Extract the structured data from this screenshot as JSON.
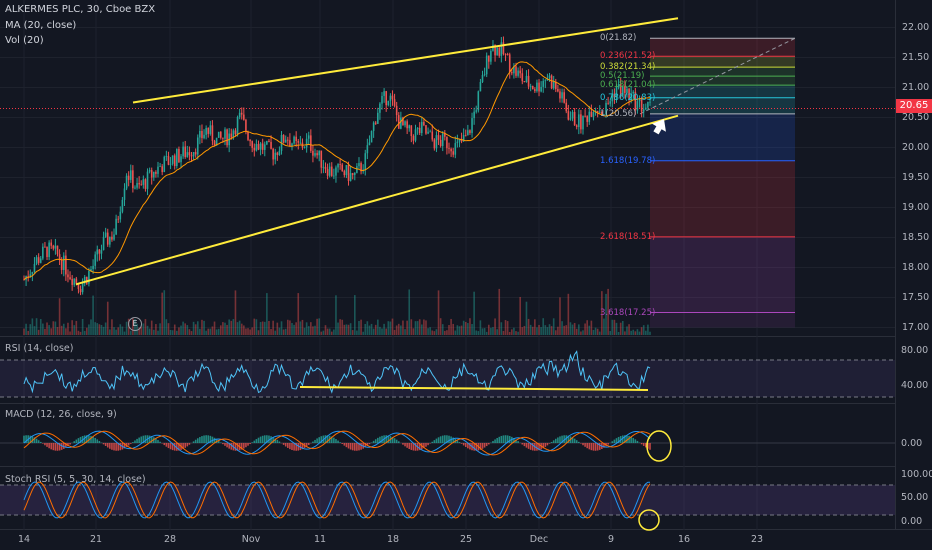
{
  "header": {
    "symbol_line": "ALKERMES PLC, 30, Cboe BZX",
    "ma_label": "MA (20, close)",
    "vol_label": "Vol (20)"
  },
  "price_tag": "20.65",
  "earnings_marker": "E",
  "panels": {
    "rsi": {
      "label": "RSI (14, close)",
      "ticks": [
        "80.00",
        "40.00"
      ]
    },
    "macd": {
      "label": "MACD (12, 26, close, 9)",
      "ticks": [
        "0.00"
      ]
    },
    "stoch": {
      "label": "Stoch RSI (5, 5, 30, 14, close)",
      "ticks": [
        "100.00",
        "50.00",
        "0.00"
      ]
    }
  },
  "price_axis": [
    "22.00",
    "21.50",
    "21.00",
    "20.50",
    "20.00",
    "19.50",
    "19.00",
    "18.50",
    "18.00",
    "17.50",
    "17.00"
  ],
  "x_axis": [
    "14",
    "21",
    "28",
    "Nov",
    "11",
    "18",
    "25",
    "Dec",
    "9",
    "16",
    "23"
  ],
  "fib_levels": [
    {
      "label": "0(21.82)",
      "price": 21.82,
      "color": "#b2b5be"
    },
    {
      "label": "0.236(21.52)",
      "price": 21.52,
      "color": "#f23645"
    },
    {
      "label": "0.382(21.34)",
      "price": 21.34,
      "color": "#cddc39"
    },
    {
      "label": "0.5(21.19)",
      "price": 21.19,
      "color": "#4caf50"
    },
    {
      "label": "0.618(21.04)",
      "price": 21.04,
      "color": "#4caf50"
    },
    {
      "label": "0.786(20.83)",
      "price": 20.83,
      "color": "#26c6da"
    },
    {
      "label": "1(20.56)",
      "price": 20.56,
      "color": "#b2b5be"
    },
    {
      "label": "1.618(19.78)",
      "price": 19.78,
      "color": "#2962ff"
    },
    {
      "label": "2.618(18.51)",
      "price": 18.51,
      "color": "#f23645"
    },
    {
      "label": "3.618(17.25)",
      "price": 17.25,
      "color": "#ab47bc"
    }
  ],
  "chart_data": {
    "type": "line",
    "title": "ALKERMES PLC, 30, Cboe BZX",
    "x_ticks": [
      "14",
      "21",
      "28",
      "Nov",
      "11",
      "18",
      "25",
      "Dec",
      "9",
      "16",
      "23"
    ],
    "y_ticks": [
      22.0,
      21.5,
      21.0,
      20.5,
      20.0,
      19.5,
      19.0,
      18.5,
      18.0,
      17.5,
      17.0
    ],
    "ylim": [
      16.9,
      22.1
    ],
    "last_price": 20.65,
    "series": [
      {
        "name": "Price",
        "x": [
          "14",
          "15",
          "16",
          "17",
          "18",
          "19",
          "20",
          "21",
          "22",
          "23",
          "24",
          "25",
          "26",
          "27",
          "28",
          "29",
          "30",
          "31",
          "Nov",
          "2",
          "3",
          "4",
          "5",
          "6",
          "7",
          "8",
          "9",
          "10",
          "11",
          "12",
          "13",
          "14",
          "15",
          "16",
          "17",
          "18",
          "19",
          "20",
          "21",
          "22",
          "23",
          "24",
          "25",
          "26",
          "27",
          "28",
          "29",
          "30",
          "Dec",
          "2",
          "3",
          "4",
          "5",
          "6",
          "7",
          "8"
        ],
        "values": [
          17.8,
          18.1,
          18.3,
          18.2,
          17.9,
          17.7,
          18.0,
          18.4,
          18.6,
          19.6,
          19.3,
          19.5,
          19.7,
          19.8,
          19.9,
          20.0,
          20.3,
          20.1,
          20.2,
          20.5,
          20.1,
          20.0,
          19.9,
          20.2,
          20.0,
          20.1,
          19.8,
          19.6,
          19.6,
          19.5,
          19.8,
          20.6,
          20.9,
          20.4,
          20.2,
          20.3,
          20.1,
          20.1,
          20.0,
          20.2,
          20.9,
          21.7,
          21.6,
          21.3,
          21.1,
          21.0,
          21.2,
          20.9,
          20.5,
          20.4,
          20.7,
          20.6,
          21.0,
          20.9,
          20.7,
          20.65
        ]
      }
    ],
    "channel": {
      "upper": [
        {
          "x": "21",
          "y": 20.75
        },
        {
          "x": "9",
          "y": 22.35
        }
      ],
      "lower": [
        {
          "x": "18 Oct",
          "y": 17.72
        },
        {
          "x": "9",
          "y": 20.52
        }
      ]
    },
    "panels": {
      "rsi": {
        "ticks": [
          80,
          40
        ]
      },
      "macd": {
        "ticks": [
          0
        ]
      },
      "stoch_rsi": {
        "ticks": [
          100,
          50,
          0
        ]
      }
    }
  }
}
